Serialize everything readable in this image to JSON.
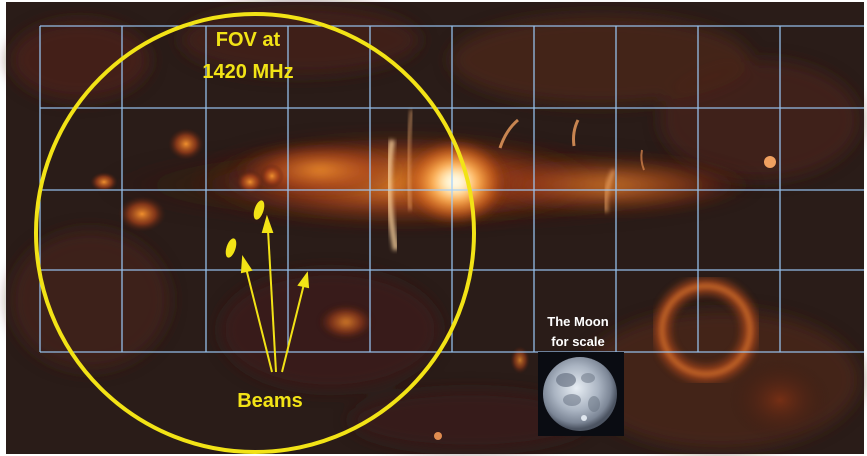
{
  "fov_label": {
    "line1": "FOV at",
    "line2": "1420 MHz"
  },
  "beams_label": "Beams",
  "moon_label": {
    "line1": "The Moon",
    "line2": "for scale"
  },
  "colors": {
    "fov_circle": "#f2e316",
    "beam_text": "#f2e316",
    "grid": "#9fd0ff",
    "moon_text": "#ffffff",
    "background": "#2a1c18"
  }
}
